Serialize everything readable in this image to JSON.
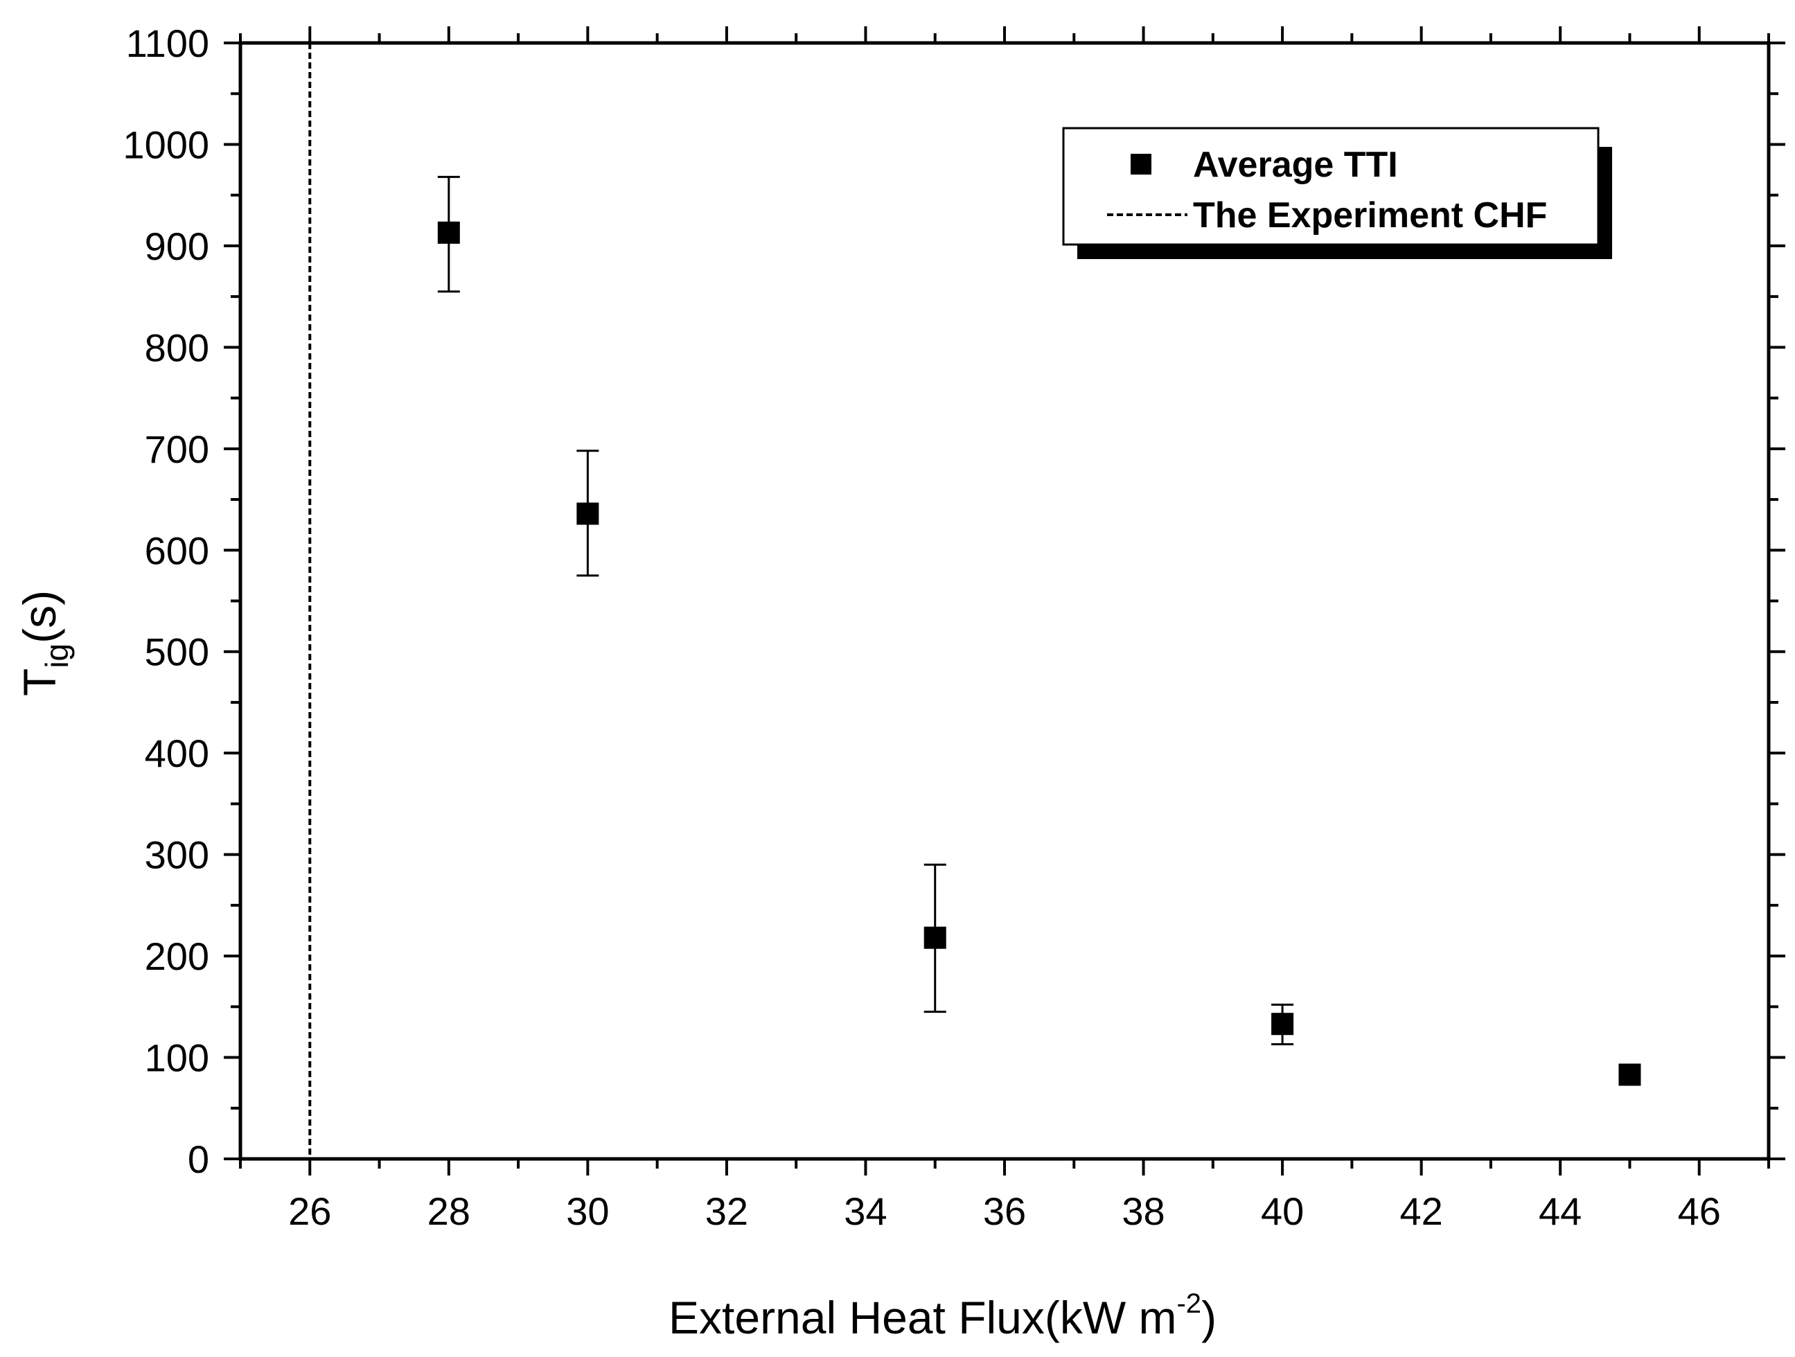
{
  "chart_data": {
    "type": "scatter",
    "xlabel": {
      "main": "External Heat Flux(kW m",
      "sup": "-2",
      "end": ")"
    },
    "ylabel": {
      "main": "T",
      "sub": "ig",
      "end": "(s)"
    },
    "xlim": [
      25,
      47
    ],
    "ylim": [
      0,
      1100
    ],
    "x_ticks": [
      26,
      28,
      30,
      32,
      34,
      36,
      38,
      40,
      42,
      44,
      46
    ],
    "y_ticks": [
      0,
      100,
      200,
      300,
      400,
      500,
      600,
      700,
      800,
      900,
      1000,
      1100
    ],
    "x_tick_labels": [
      "26",
      "28",
      "30",
      "32",
      "34",
      "36",
      "38",
      "40",
      "42",
      "44",
      "46"
    ],
    "y_tick_labels": [
      "0",
      "100",
      "200",
      "300",
      "400",
      "500",
      "600",
      "700",
      "800",
      "900",
      "1000",
      "1100"
    ],
    "grid": false,
    "legend_position": "top-right",
    "series": [
      {
        "name": "Average TTI",
        "marker": "square",
        "color": "#000000",
        "points": [
          {
            "x": 28,
            "y": 913,
            "err_low": 855,
            "err_high": 968
          },
          {
            "x": 30,
            "y": 636,
            "err_low": 575,
            "err_high": 698
          },
          {
            "x": 35,
            "y": 218,
            "err_low": 145,
            "err_high": 290
          },
          {
            "x": 40,
            "y": 133,
            "err_low": 113,
            "err_high": 152
          },
          {
            "x": 45,
            "y": 83,
            "err_low": 83,
            "err_high": 83
          }
        ]
      },
      {
        "name": "The Experiment CHF",
        "line_style": "dashed",
        "color": "#000000",
        "x_value": 26
      }
    ]
  }
}
